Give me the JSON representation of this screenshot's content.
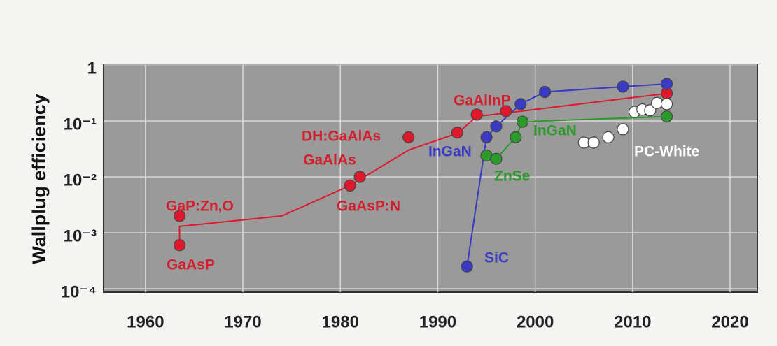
{
  "chart_data": {
    "type": "line",
    "ylabel": "Wallplug efficiency",
    "yscale": "log",
    "grid": true,
    "xlim": [
      1955.7,
      2022.8
    ],
    "ylim": [
      0.0001,
      1
    ],
    "xticks": [
      1960,
      1970,
      1980,
      1990,
      2000,
      2010,
      2020
    ],
    "yticks": [
      {
        "value": 1,
        "label": "1"
      },
      {
        "value": 0.1,
        "label": "10⁻¹"
      },
      {
        "value": 0.01,
        "label": "10⁻²"
      },
      {
        "value": 0.001,
        "label": "10⁻³"
      },
      {
        "value": 0.0001,
        "label": "10⁻⁴"
      }
    ],
    "series": [
      {
        "color": "#e0182b",
        "x": [
          1963.5,
          1963.5,
          1981,
          1982,
          1987,
          1992,
          1994,
          1997,
          2013.5
        ],
        "values": [
          0.002,
          0.0006,
          0.007,
          0.01,
          0.051,
          0.062,
          0.13,
          0.15,
          0.31
        ],
        "line_x": [
          1963.5,
          1963.5,
          1974,
          1981,
          1987,
          1992,
          1994,
          2013.5
        ],
        "line_values": [
          0.0006,
          0.0013,
          0.002,
          0.007,
          0.03,
          0.06,
          0.12,
          0.31
        ]
      },
      {
        "color": "#3a3ac4",
        "x": [
          1993,
          1995,
          1996,
          1998.5,
          2001,
          2009,
          2013.5
        ],
        "values": [
          0.00025,
          0.051,
          0.08,
          0.2,
          0.33,
          0.41,
          0.46
        ]
      },
      {
        "color": "#2a9a2a",
        "x": [
          1995,
          1996,
          1998,
          1998.7,
          2013.5
        ],
        "values": [
          0.024,
          0.021,
          0.051,
          0.097,
          0.12
        ]
      },
      {
        "color": "#ffffff",
        "x": [
          2005,
          2006,
          2007.5,
          2009,
          2010.2,
          2011,
          2011.8,
          2012.5,
          2013.5
        ],
        "values": [
          0.041,
          0.041,
          0.051,
          0.071,
          0.145,
          0.16,
          0.155,
          0.21,
          0.2
        ]
      }
    ],
    "annotations": [
      {
        "text": "GaP:Zn,O",
        "color": "#d41f2e"
      },
      {
        "text": "GaAsP",
        "color": "#d41f2e"
      },
      {
        "text": "GaAsP:N",
        "color": "#d41f2e"
      },
      {
        "text": "GaAlAs",
        "color": "#d41f2e"
      },
      {
        "text": "DH:GaAlAs",
        "color": "#d41f2e"
      },
      {
        "text": "GaAlInP",
        "color": "#d41f2e"
      },
      {
        "text": "InGaN",
        "color": "#3a3ac4"
      },
      {
        "text": "SiC",
        "color": "#3a3ac4"
      },
      {
        "text": "ZnSe",
        "color": "#2a9a2a"
      },
      {
        "text": "InGaN",
        "color": "#2a9a2a"
      },
      {
        "text": "PC-White",
        "color": "#ffffff"
      }
    ]
  }
}
